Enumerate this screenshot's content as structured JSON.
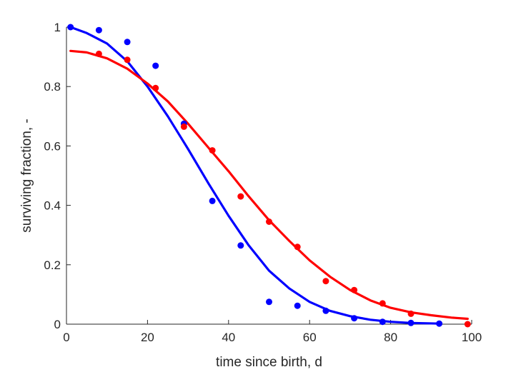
{
  "chart_data": {
    "type": "scatter",
    "xlabel": "time since birth, d",
    "ylabel": "surviving fraction, -",
    "xlim": [
      0,
      100
    ],
    "ylim": [
      0,
      1
    ],
    "xticks": [
      0,
      20,
      40,
      60,
      80,
      100
    ],
    "yticks": [
      0,
      0.2,
      0.4,
      0.6,
      0.8,
      1
    ],
    "ytick_labels": [
      "0",
      "0.2",
      "0.4",
      "0.6",
      "0.8",
      "1"
    ],
    "grid": false,
    "series": [
      {
        "color": "#0000ff",
        "points": {
          "x": [
            1,
            8,
            15,
            22,
            29,
            36,
            43,
            50,
            57,
            64,
            71,
            78,
            85,
            92
          ],
          "y": [
            1.0,
            0.99,
            0.95,
            0.87,
            0.675,
            0.415,
            0.265,
            0.075,
            0.062,
            0.045,
            0.02,
            0.008,
            0.004,
            0.002
          ]
        },
        "fit": {
          "x": [
            1,
            5,
            10,
            15,
            20,
            25,
            30,
            35,
            40,
            45,
            50,
            55,
            60,
            65,
            70,
            75,
            80,
            85,
            92
          ],
          "y": [
            1.0,
            0.98,
            0.945,
            0.885,
            0.8,
            0.7,
            0.59,
            0.475,
            0.365,
            0.265,
            0.18,
            0.12,
            0.075,
            0.045,
            0.027,
            0.015,
            0.008,
            0.004,
            0.002
          ]
        }
      },
      {
        "color": "#ff0000",
        "points": {
          "x": [
            1,
            8,
            15,
            22,
            29,
            36,
            43,
            50,
            57,
            64,
            71,
            78,
            85,
            99
          ],
          "y": [
            null,
            0.91,
            0.89,
            0.795,
            0.665,
            0.585,
            0.43,
            0.345,
            0.26,
            0.145,
            0.115,
            0.07,
            0.035,
            0.0
          ]
        },
        "fit": {
          "x": [
            1,
            5,
            10,
            15,
            20,
            25,
            30,
            35,
            40,
            45,
            50,
            55,
            60,
            65,
            70,
            75,
            80,
            85,
            90,
            95,
            99
          ],
          "y": [
            0.92,
            0.915,
            0.895,
            0.86,
            0.81,
            0.75,
            0.675,
            0.595,
            0.515,
            0.43,
            0.35,
            0.28,
            0.215,
            0.16,
            0.115,
            0.08,
            0.055,
            0.04,
            0.03,
            0.022,
            0.018
          ]
        }
      }
    ]
  }
}
